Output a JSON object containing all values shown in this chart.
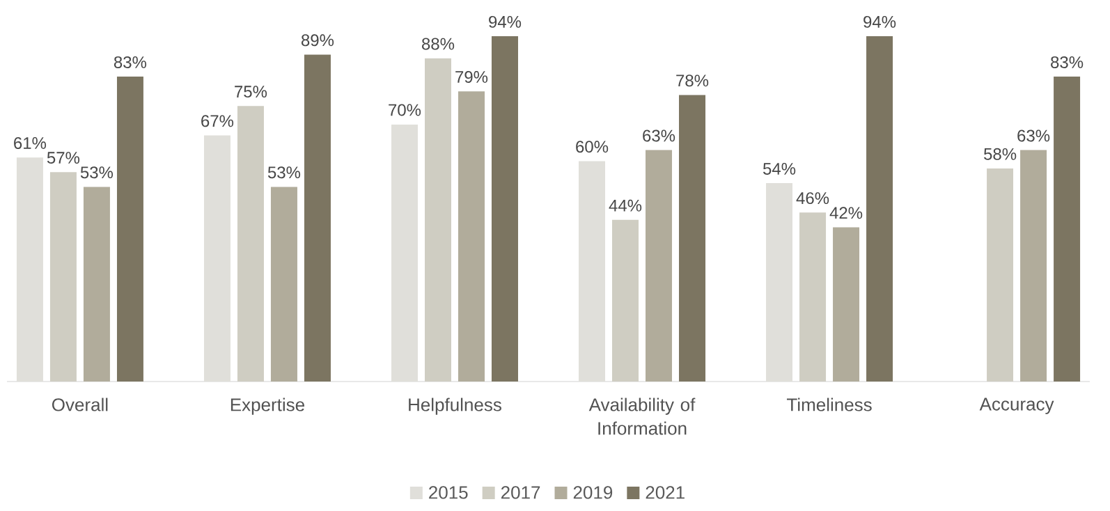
{
  "chart_data": {
    "type": "bar",
    "categories": [
      "Overall",
      "Expertise",
      "Helpfulness",
      "Availability of Information",
      "Timeliness",
      "Accuracy"
    ],
    "series": [
      {
        "name": "2015",
        "color": "#e0dfda",
        "values": [
          61,
          67,
          70,
          60,
          54,
          null
        ],
        "value_labels": [
          "61%",
          "67%",
          "70%",
          "60%",
          "54%",
          null
        ]
      },
      {
        "name": "2017",
        "color": "#cfcdc2",
        "values": [
          57,
          75,
          88,
          44,
          46,
          58
        ],
        "value_labels": [
          "57%",
          "75%",
          "88%",
          "44%",
          "46%",
          "58%"
        ]
      },
      {
        "name": "2019",
        "color": "#b1ac9b",
        "values": [
          53,
          53,
          79,
          63,
          42,
          63
        ],
        "value_labels": [
          "53%",
          "53%",
          "79%",
          "63%",
          "42%",
          "63%"
        ]
      },
      {
        "name": "2021",
        "color": "#7c7561",
        "values": [
          83,
          89,
          94,
          78,
          94,
          83
        ],
        "value_labels": [
          "83%",
          "89%",
          "94%",
          "78%",
          "94%",
          "83%"
        ]
      }
    ],
    "legend": "bottom"
  }
}
